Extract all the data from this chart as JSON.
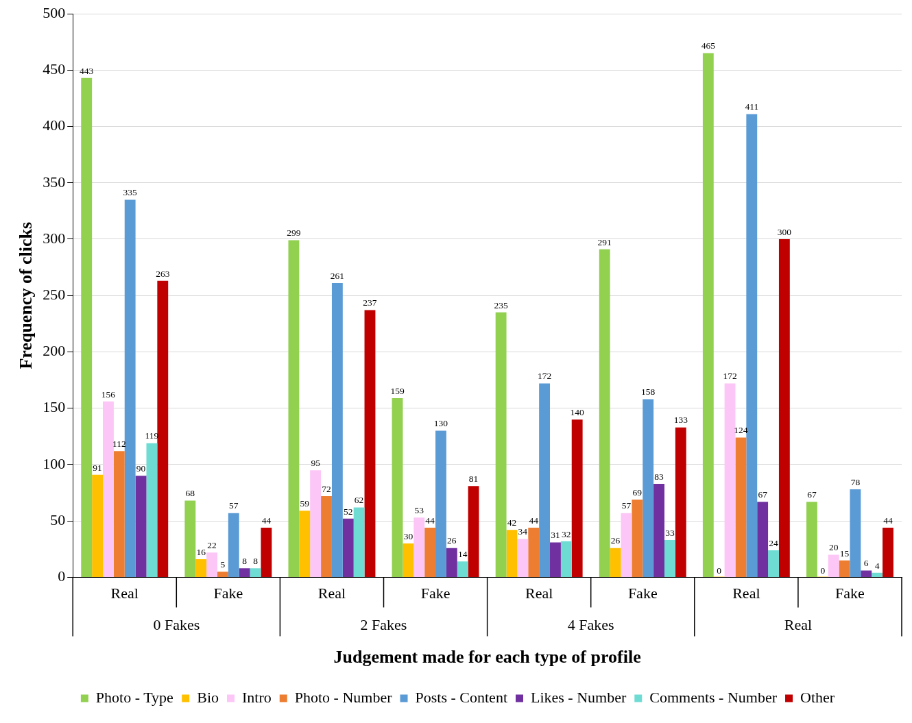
{
  "chart_data": {
    "type": "bar",
    "xlabel": "Judgement made for each type of profile",
    "ylabel": "Frequency of clicks",
    "categories": [
      "Real",
      "Fake",
      "Real",
      "Fake",
      "Real",
      "Fake",
      "Real",
      "Fake"
    ],
    "annotations": [
      "0 Fakes",
      "2 Fakes",
      "4 Fakes",
      "Real"
    ],
    "series": [
      {
        "name": "Photo - Type",
        "color": "#92d050",
        "values": [
          443,
          68,
          299,
          159,
          235,
          291,
          465,
          67
        ]
      },
      {
        "name": "Bio",
        "color": "#ffc000",
        "values": [
          91,
          16,
          59,
          30,
          42,
          26,
          0,
          0
        ]
      },
      {
        "name": "Intro",
        "color": "#fcc6f6",
        "values": [
          156,
          22,
          95,
          53,
          34,
          57,
          172,
          20
        ]
      },
      {
        "name": "Photo - Number",
        "color": "#ed7d31",
        "values": [
          112,
          5,
          72,
          44,
          44,
          69,
          124,
          15
        ]
      },
      {
        "name": "Posts - Content",
        "color": "#5b9bd5",
        "values": [
          335,
          57,
          261,
          130,
          172,
          158,
          411,
          78
        ]
      },
      {
        "name": "Likes - Number",
        "color": "#7030a0",
        "values": [
          90,
          8,
          52,
          26,
          31,
          83,
          67,
          6
        ]
      },
      {
        "name": "Comments - Number",
        "color": "#6fdcd4",
        "values": [
          119,
          8,
          62,
          14,
          32,
          33,
          24,
          4
        ]
      },
      {
        "name": "Other",
        "color": "#c00000",
        "values": [
          263,
          44,
          237,
          81,
          140,
          133,
          300,
          44
        ]
      }
    ],
    "ylim": [
      0,
      500
    ],
    "yticks": [
      0,
      50,
      100,
      150,
      200,
      250,
      300,
      350,
      400,
      450,
      500
    ],
    "grid": "y",
    "legend": "bottom",
    "data_labels": true
  }
}
